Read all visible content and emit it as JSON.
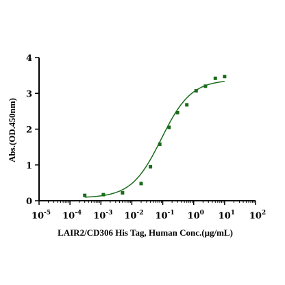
{
  "chart_data": {
    "type": "scatter",
    "xlabel": "LAIR2/CD306 His Tag, Human Conc.(μg/mL)",
    "ylabel": "Abs.(OD.450nm)",
    "x_scale": "log",
    "xlim": [
      1e-05,
      100
    ],
    "ylim": [
      0,
      4
    ],
    "x_ticks": [
      {
        "base": "10",
        "exp": "-5"
      },
      {
        "base": "10",
        "exp": "-4"
      },
      {
        "base": "10",
        "exp": "-3"
      },
      {
        "base": "10",
        "exp": "-2"
      },
      {
        "base": "10",
        "exp": "-1"
      },
      {
        "base": "10",
        "exp": "0"
      },
      {
        "base": "10",
        "exp": "1"
      },
      {
        "base": "10",
        "exp": "2"
      }
    ],
    "y_ticks": [
      "0",
      "1",
      "2",
      "3",
      "4"
    ],
    "grid": false,
    "series": [
      {
        "x": [
          0.0003,
          0.0012,
          0.005,
          0.02,
          0.04,
          0.08,
          0.16,
          0.3,
          0.6,
          1.2,
          2.4,
          5,
          10
        ],
        "y": [
          0.15,
          0.17,
          0.22,
          0.48,
          0.95,
          1.58,
          2.05,
          2.46,
          2.68,
          3.07,
          3.2,
          3.42,
          3.47
        ]
      }
    ],
    "fit_curve": {
      "bottom": 0.08,
      "top": 3.38,
      "ec50": 0.09,
      "hill": 0.9
    },
    "colors": {
      "points": "#1a6b1a",
      "curve": "#1a6b1a",
      "axes": "#000000"
    }
  }
}
